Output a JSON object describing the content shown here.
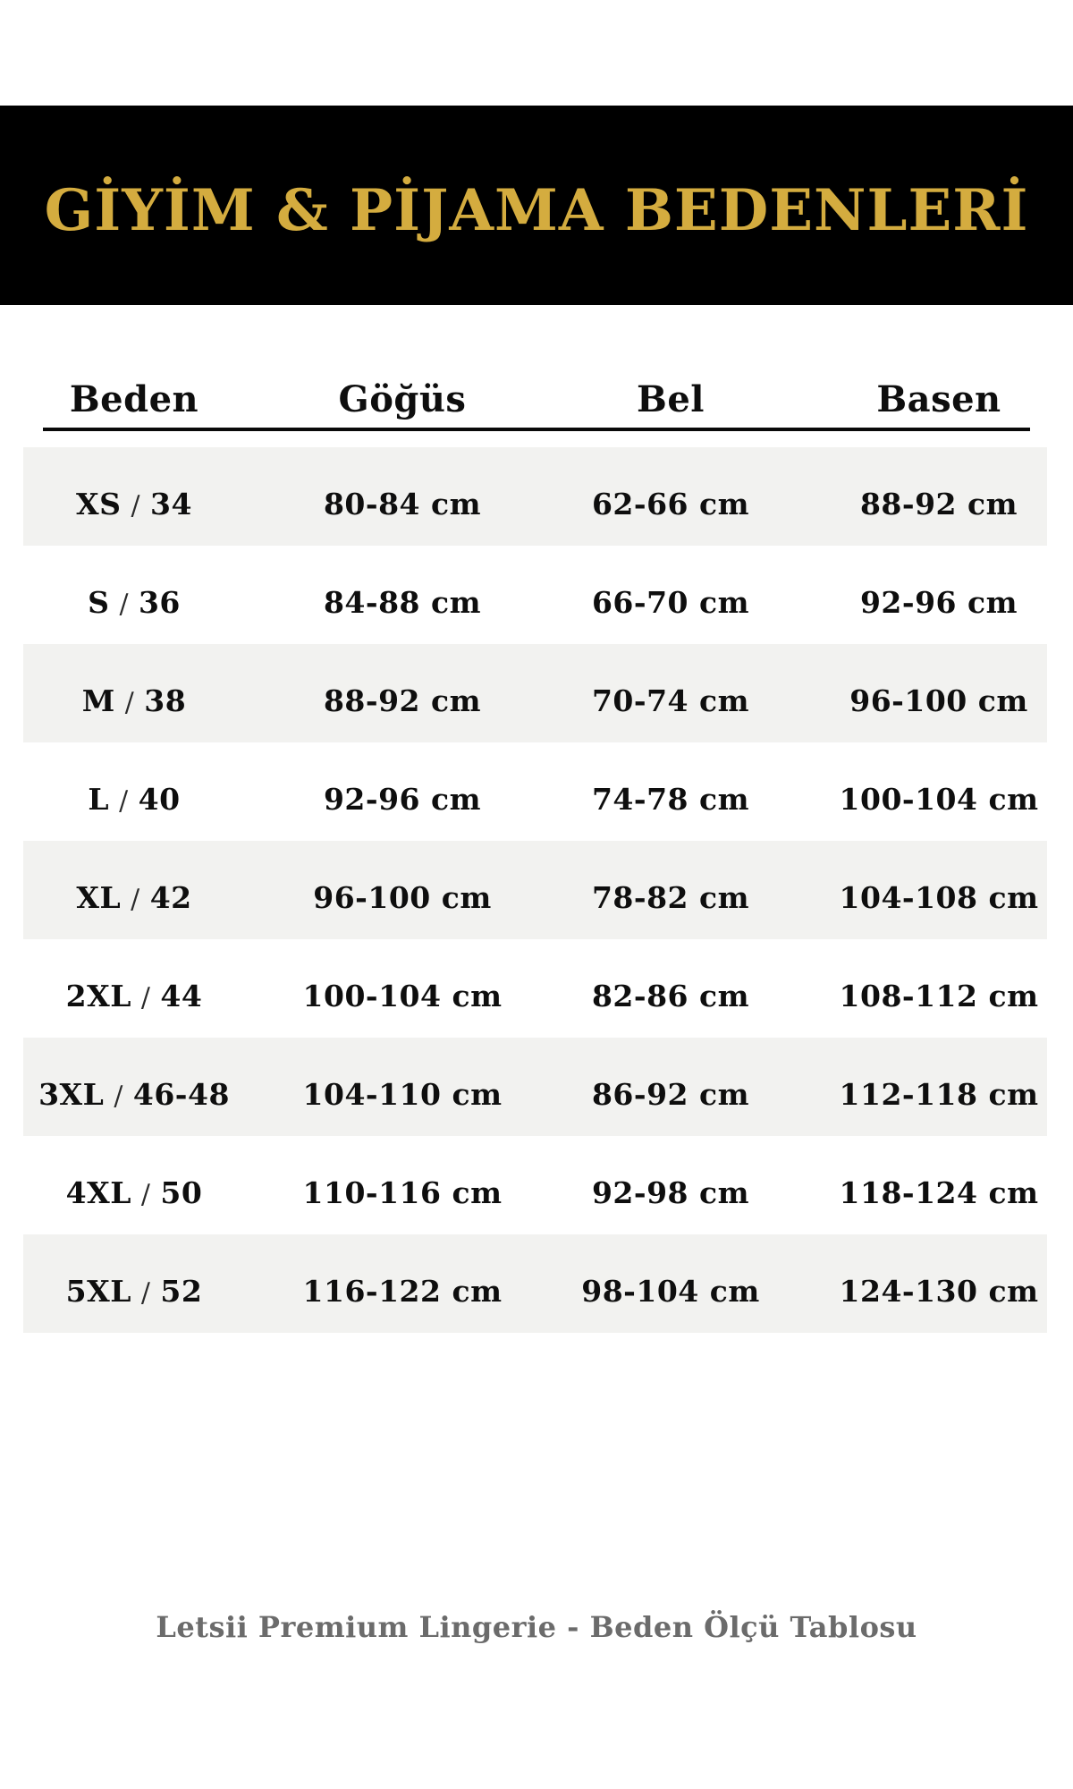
{
  "page": {
    "title": "GİYİM & PİJAMA BEDENLERİ",
    "footer": "Letsii Premium Lingerie - Beden Ölçü Tablosu"
  },
  "colors": {
    "banner_bg": "#000000",
    "title_gold": "#d4ac3f",
    "row_stripe": "#f2f2f0",
    "body_text": "#0e0e0e",
    "footer_text": "#6b6b6b"
  },
  "table": {
    "separator": "/",
    "columns": [
      "Beden",
      "Göğüs",
      "Bel",
      "Basen"
    ],
    "rows": [
      {
        "size_label": "XS",
        "size_value": "34",
        "chest": "80-84 cm",
        "waist": "62-66 cm",
        "hip": "88-92 cm"
      },
      {
        "size_label": "S",
        "size_value": "36",
        "chest": "84-88 cm",
        "waist": "66-70 cm",
        "hip": "92-96 cm"
      },
      {
        "size_label": "M",
        "size_value": "38",
        "chest": "88-92 cm",
        "waist": "70-74 cm",
        "hip": "96-100 cm"
      },
      {
        "size_label": "L",
        "size_value": "40",
        "chest": "92-96 cm",
        "waist": "74-78 cm",
        "hip": "100-104 cm"
      },
      {
        "size_label": "XL",
        "size_value": "42",
        "chest": "96-100 cm",
        "waist": "78-82 cm",
        "hip": "104-108 cm"
      },
      {
        "size_label": "2XL",
        "size_value": "44",
        "chest": "100-104 cm",
        "waist": "82-86 cm",
        "hip": "108-112 cm"
      },
      {
        "size_label": "3XL",
        "size_value": "46-48",
        "chest": "104-110 cm",
        "waist": "86-92 cm",
        "hip": "112-118 cm"
      },
      {
        "size_label": "4XL",
        "size_value": "50",
        "chest": "110-116 cm",
        "waist": "92-98 cm",
        "hip": "118-124 cm"
      },
      {
        "size_label": "5XL",
        "size_value": "52",
        "chest": "116-122 cm",
        "waist": "98-104 cm",
        "hip": "124-130 cm"
      }
    ]
  }
}
